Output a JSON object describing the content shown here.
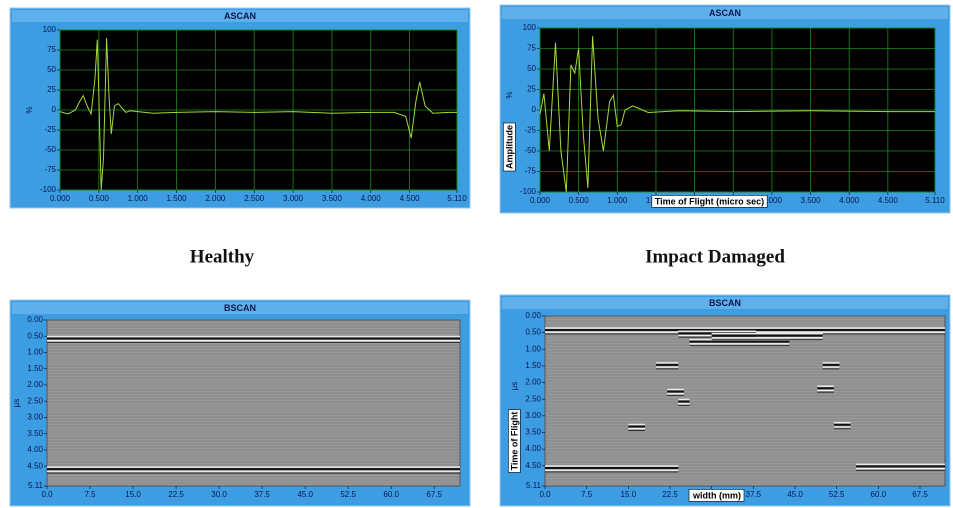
{
  "captions": [
    "Healthy",
    "Impact Damaged"
  ],
  "chart_data": [
    {
      "type": "line",
      "title": "ASCAN",
      "ylabel": "%",
      "color": "#a6d83a",
      "x": [
        0,
        0.1,
        0.2,
        0.25,
        0.3,
        0.35,
        0.4,
        0.45,
        0.48,
        0.5,
        0.53,
        0.56,
        0.6,
        0.63,
        0.66,
        0.7,
        0.75,
        0.8,
        0.85,
        0.9,
        1.0,
        1.2,
        1.5,
        2.0,
        2.5,
        3.0,
        3.5,
        4.0,
        4.3,
        4.45,
        4.52,
        4.58,
        4.63,
        4.7,
        4.8,
        5.0,
        5.11
      ],
      "values": [
        -2,
        -5,
        0,
        10,
        18,
        5,
        -5,
        40,
        88,
        20,
        -100,
        -60,
        90,
        20,
        -30,
        5,
        8,
        2,
        -3,
        -1,
        -2,
        -4,
        -3,
        -2,
        -3,
        -2,
        -4,
        -3,
        -3,
        -8,
        -35,
        10,
        35,
        5,
        -4,
        -3,
        -3
      ],
      "xlim": [
        0,
        5.11
      ],
      "ylim": [
        -100,
        100
      ],
      "xticks": [
        {
          "value": 0,
          "label": "0.000"
        },
        {
          "value": 0.5,
          "label": "0.500"
        },
        {
          "value": 1,
          "label": "1.000"
        },
        {
          "value": 1.5,
          "label": "1.500"
        },
        {
          "value": 2,
          "label": "2.000"
        },
        {
          "value": 2.5,
          "label": "2.500"
        },
        {
          "value": 3,
          "label": "3.000"
        },
        {
          "value": 3.5,
          "label": "3.500"
        },
        {
          "value": 4,
          "label": "4.000"
        },
        {
          "value": 4.5,
          "label": "4.500"
        },
        {
          "value": 5.11,
          "label": "5.110"
        }
      ],
      "yticks": [
        -100,
        -75,
        -50,
        -25,
        0,
        25,
        50,
        75,
        100
      ],
      "grid": true
    },
    {
      "type": "line",
      "title": "ASCAN",
      "ylabel": "%",
      "ylabel_box": "Amplitude",
      "xlabel": "Time of Flight (micro sec)",
      "color": "#a6d83a",
      "x": [
        0,
        0.05,
        0.12,
        0.2,
        0.27,
        0.34,
        0.4,
        0.45,
        0.5,
        0.56,
        0.62,
        0.68,
        0.75,
        0.82,
        0.9,
        0.95,
        1.0,
        1.05,
        1.1,
        1.2,
        1.4,
        1.8,
        2.5,
        3.5,
        4.5,
        5.11
      ],
      "values": [
        -5,
        20,
        -50,
        82,
        -50,
        -100,
        55,
        45,
        75,
        -30,
        -95,
        90,
        -10,
        -50,
        10,
        18,
        -20,
        -18,
        0,
        5,
        -3,
        -1,
        -2,
        -1,
        -2,
        -2
      ],
      "xlim": [
        0,
        5.11
      ],
      "ylim": [
        -100,
        100
      ],
      "xticks": [
        {
          "value": 0,
          "label": "0.000"
        },
        {
          "value": 0.5,
          "label": "0.500"
        },
        {
          "value": 1,
          "label": "1.000"
        },
        {
          "value": 1.5,
          "label": "1.500"
        },
        {
          "value": 2,
          "label": "2.000"
        },
        {
          "value": 2.5,
          "label": "2.500"
        },
        {
          "value": 3,
          "label": "3.000"
        },
        {
          "value": 3.5,
          "label": "3.500"
        },
        {
          "value": 4,
          "label": "4.000"
        },
        {
          "value": 4.5,
          "label": "4.500"
        },
        {
          "value": 5.11,
          "label": "5.110"
        }
      ],
      "yticks": [
        -100,
        -75,
        -50,
        -25,
        0,
        25,
        50,
        75,
        100
      ],
      "grid": true
    },
    {
      "type": "bscan",
      "title": "BSCAN",
      "ylabel": "µs",
      "xlim": [
        0,
        72
      ],
      "ylim": [
        0,
        5.11
      ],
      "y_inverted": true,
      "xticks": [
        {
          "value": 0,
          "label": "0.0"
        },
        7.5,
        {
          "value": 15,
          "label": "15.0"
        },
        22.5,
        {
          "value": 30,
          "label": "30.0"
        },
        37.5,
        {
          "value": 45,
          "label": "45.0"
        },
        52.5,
        {
          "value": 60,
          "label": "60.0"
        },
        67.5
      ],
      "yticks": [
        {
          "value": 0,
          "label": "0.00"
        },
        {
          "value": 0.5,
          "label": "0.50"
        },
        {
          "value": 1,
          "label": "1.00"
        },
        {
          "value": 1.5,
          "label": "1.50"
        },
        {
          "value": 2,
          "label": "2.00"
        },
        {
          "value": 2.5,
          "label": "2.50"
        },
        {
          "value": 3,
          "label": "3.00"
        },
        {
          "value": 3.5,
          "label": "3.50"
        },
        {
          "value": 4,
          "label": "4.00"
        },
        {
          "value": 4.5,
          "label": "4.50"
        },
        5.11
      ],
      "reflectors": {
        "x_start": [
          0,
          0
        ],
        "x_end": [
          72,
          72
        ],
        "depth": [
          0.6,
          4.62
        ]
      }
    },
    {
      "type": "bscan",
      "title": "BSCAN",
      "ylabel": "µs",
      "ylabel_box": "Time of Flight",
      "xlabel": "width (mm)",
      "xlim": [
        0,
        72
      ],
      "ylim": [
        0,
        5.11
      ],
      "y_inverted": true,
      "xticks": [
        {
          "value": 0,
          "label": "0.0"
        },
        7.5,
        {
          "value": 15,
          "label": "15.0"
        },
        22.5,
        {
          "value": 30,
          "label": "30.0"
        },
        37.5,
        {
          "value": 45,
          "label": "45.0"
        },
        52.5,
        {
          "value": 60,
          "label": "60.0"
        },
        67.5
      ],
      "yticks": [
        {
          "value": 0,
          "label": "0.00"
        },
        {
          "value": 0.5,
          "label": "0.50"
        },
        {
          "value": 1,
          "label": "1.00"
        },
        {
          "value": 1.5,
          "label": "1.50"
        },
        {
          "value": 2,
          "label": "2.00"
        },
        {
          "value": 2.5,
          "label": "2.50"
        },
        {
          "value": 3,
          "label": "3.00"
        },
        {
          "value": 3.5,
          "label": "3.50"
        },
        {
          "value": 4,
          "label": "4.00"
        },
        {
          "value": 4.5,
          "label": "4.50"
        },
        5.11
      ],
      "reflectors": {
        "x_start": [
          0,
          24,
          26,
          30,
          20,
          50,
          22,
          49,
          24,
          15,
          52,
          0,
          56
        ],
        "x_end": [
          72,
          38,
          44,
          50,
          24,
          53,
          25,
          52,
          26,
          18,
          55,
          24,
          72
        ],
        "depth": [
          0.45,
          0.55,
          0.8,
          0.62,
          1.5,
          1.5,
          2.3,
          2.2,
          2.6,
          3.35,
          3.3,
          4.6,
          4.55
        ]
      }
    }
  ]
}
